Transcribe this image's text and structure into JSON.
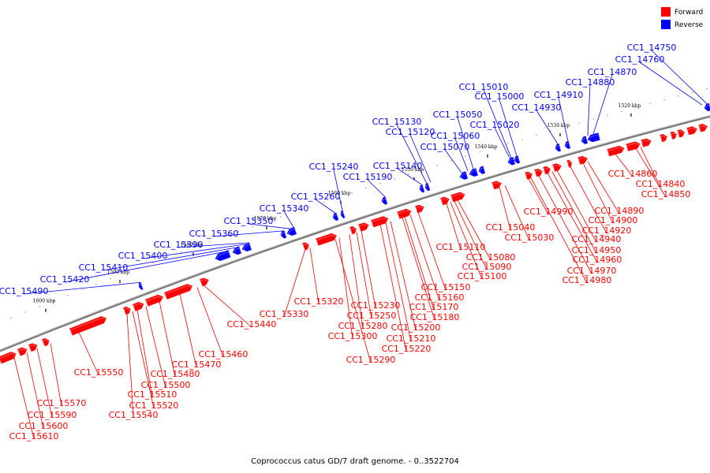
{
  "caption": "Coprococcus catus GD/7 draft genome. - 0..3522704",
  "legend": [
    {
      "label": "Forward",
      "color": "#ff0000"
    },
    {
      "label": "Reverse",
      "color": "#0000ff"
    }
  ],
  "colors": {
    "forward": "#ff0000",
    "reverse": "#0000ff",
    "backbone": "#777777"
  },
  "scale_labels": [
    "1520 kbp",
    "1530 kbp",
    "1540 kbp",
    "1550 kbp",
    "1560 kbp",
    "1570 kbp",
    "1580 kbp",
    "1590 kbp",
    "1600 kbp"
  ],
  "reverse_genes": [
    "CC1_14750",
    "CC1_14760",
    "CC1_14870",
    "CC1_14880",
    "CC1_14910",
    "CC1_14930",
    "CC1_15000",
    "CC1_15010",
    "CC1_15020",
    "CC1_15050",
    "CC1_15060",
    "CC1_15070",
    "CC1_15120",
    "CC1_15130",
    "CC1_15140",
    "CC1_15190",
    "CC1_15240",
    "CC1_15260",
    "CC1_15340",
    "CC1_15350",
    "CC1_15360",
    "CC1_15390",
    "CC1_15400",
    "CC1_15410",
    "CC1_15420",
    "CC1_15490"
  ],
  "forward_genes": [
    "CC1_14840",
    "CC1_14850",
    "CC1_14860",
    "CC1_14890",
    "CC1_14900",
    "CC1_14920",
    "CC1_14940",
    "CC1_14950",
    "CC1_14960",
    "CC1_14970",
    "CC1_14980",
    "CC1_14990",
    "CC1_15030",
    "CC1_15040",
    "CC1_15080",
    "CC1_15090",
    "CC1_15100",
    "CC1_15110",
    "CC1_15150",
    "CC1_15160",
    "CC1_15170",
    "CC1_15180",
    "CC1_15200",
    "CC1_15210",
    "CC1_15220",
    "CC1_15230",
    "CC1_15250",
    "CC1_15280",
    "CC1_15290",
    "CC1_15300",
    "CC1_15320",
    "CC1_15330",
    "CC1_15440",
    "CC1_15460",
    "CC1_15470",
    "CC1_15480",
    "CC1_15500",
    "CC1_15510",
    "CC1_15520",
    "CC1_15540",
    "CC1_15550",
    "CC1_15570",
    "CC1_15590",
    "CC1_15600",
    "CC1_15610"
  ]
}
